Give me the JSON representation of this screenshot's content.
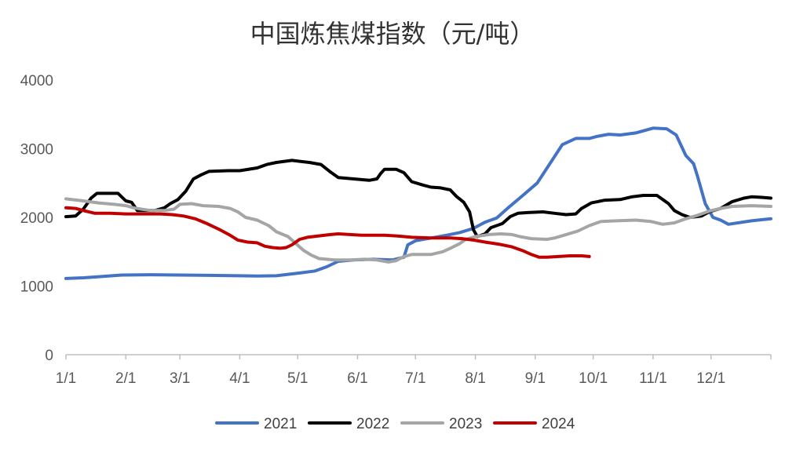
{
  "chart_data": {
    "type": "line",
    "title": "中国炼焦煤指数（元/吨）",
    "xlabel": "",
    "ylabel": "",
    "ylim": [
      0,
      4000
    ],
    "xlim": [
      1,
      366
    ],
    "grid": false,
    "legend_position": "bottom",
    "yticks": [
      "0",
      "1000",
      "2000",
      "3000",
      "4000"
    ],
    "ytick_values": [
      0,
      1000,
      2000,
      3000,
      4000
    ],
    "xticks": [
      {
        "label": "1/1",
        "day": 1
      },
      {
        "label": "2/1",
        "day": 32
      },
      {
        "label": "3/1",
        "day": 60
      },
      {
        "label": "4/1",
        "day": 91
      },
      {
        "label": "5/1",
        "day": 121
      },
      {
        "label": "6/1",
        "day": 152
      },
      {
        "label": "7/1",
        "day": 182
      },
      {
        "label": "8/1",
        "day": 213
      },
      {
        "label": "9/1",
        "day": 244
      },
      {
        "label": "10/1",
        "day": 274
      },
      {
        "label": "11/1",
        "day": 305
      },
      {
        "label": "12/1",
        "day": 335
      }
    ],
    "series": [
      {
        "name": "2021",
        "color": "#4472c4",
        "points": [
          [
            1,
            1110
          ],
          [
            10,
            1120
          ],
          [
            20,
            1140
          ],
          [
            30,
            1160
          ],
          [
            45,
            1165
          ],
          [
            60,
            1160
          ],
          [
            75,
            1155
          ],
          [
            90,
            1150
          ],
          [
            100,
            1145
          ],
          [
            110,
            1150
          ],
          [
            116,
            1170
          ],
          [
            122,
            1190
          ],
          [
            130,
            1220
          ],
          [
            136,
            1280
          ],
          [
            142,
            1360
          ],
          [
            150,
            1380
          ],
          [
            160,
            1390
          ],
          [
            170,
            1380
          ],
          [
            176,
            1420
          ],
          [
            178,
            1600
          ],
          [
            182,
            1660
          ],
          [
            190,
            1700
          ],
          [
            198,
            1740
          ],
          [
            205,
            1780
          ],
          [
            212,
            1840
          ],
          [
            218,
            1930
          ],
          [
            224,
            1990
          ],
          [
            230,
            2140
          ],
          [
            238,
            2330
          ],
          [
            245,
            2500
          ],
          [
            252,
            2800
          ],
          [
            258,
            3060
          ],
          [
            265,
            3150
          ],
          [
            272,
            3150
          ],
          [
            276,
            3180
          ],
          [
            282,
            3210
          ],
          [
            288,
            3200
          ],
          [
            296,
            3230
          ],
          [
            305,
            3300
          ],
          [
            312,
            3290
          ],
          [
            317,
            3200
          ],
          [
            322,
            2900
          ],
          [
            326,
            2780
          ],
          [
            328,
            2600
          ],
          [
            332,
            2200
          ],
          [
            336,
            2000
          ],
          [
            340,
            1960
          ],
          [
            344,
            1900
          ],
          [
            356,
            1950
          ],
          [
            366,
            1980
          ]
        ]
      },
      {
        "name": "2022",
        "color": "#000000",
        "points": [
          [
            1,
            2010
          ],
          [
            6,
            2020
          ],
          [
            10,
            2120
          ],
          [
            14,
            2280
          ],
          [
            17,
            2350
          ],
          [
            28,
            2350
          ],
          [
            32,
            2240
          ],
          [
            35,
            2220
          ],
          [
            38,
            2100
          ],
          [
            47,
            2100
          ],
          [
            52,
            2140
          ],
          [
            55,
            2200
          ],
          [
            59,
            2260
          ],
          [
            63,
            2380
          ],
          [
            67,
            2560
          ],
          [
            71,
            2620
          ],
          [
            75,
            2670
          ],
          [
            85,
            2680
          ],
          [
            91,
            2680
          ],
          [
            100,
            2720
          ],
          [
            105,
            2770
          ],
          [
            110,
            2800
          ],
          [
            118,
            2830
          ],
          [
            127,
            2800
          ],
          [
            133,
            2770
          ],
          [
            138,
            2660
          ],
          [
            142,
            2580
          ],
          [
            150,
            2560
          ],
          [
            158,
            2540
          ],
          [
            162,
            2560
          ],
          [
            164,
            2640
          ],
          [
            166,
            2700
          ],
          [
            172,
            2700
          ],
          [
            176,
            2650
          ],
          [
            180,
            2520
          ],
          [
            186,
            2470
          ],
          [
            190,
            2440
          ],
          [
            195,
            2430
          ],
          [
            200,
            2400
          ],
          [
            203,
            2310
          ],
          [
            207,
            2220
          ],
          [
            210,
            2080
          ],
          [
            212,
            1820
          ],
          [
            214,
            1720
          ],
          [
            218,
            1760
          ],
          [
            221,
            1850
          ],
          [
            227,
            1910
          ],
          [
            231,
            2010
          ],
          [
            235,
            2060
          ],
          [
            240,
            2070
          ],
          [
            248,
            2080
          ],
          [
            254,
            2060
          ],
          [
            260,
            2040
          ],
          [
            265,
            2050
          ],
          [
            268,
            2130
          ],
          [
            273,
            2210
          ],
          [
            280,
            2250
          ],
          [
            288,
            2260
          ],
          [
            294,
            2300
          ],
          [
            300,
            2320
          ],
          [
            307,
            2320
          ],
          [
            313,
            2200
          ],
          [
            316,
            2100
          ],
          [
            320,
            2040
          ],
          [
            324,
            2000
          ],
          [
            330,
            2020
          ],
          [
            334,
            2080
          ],
          [
            340,
            2130
          ],
          [
            346,
            2230
          ],
          [
            352,
            2280
          ],
          [
            356,
            2300
          ],
          [
            362,
            2290
          ],
          [
            366,
            2280
          ]
        ]
      },
      {
        "name": "2023",
        "color": "#a5a5a5",
        "points": [
          [
            1,
            2270
          ],
          [
            10,
            2240
          ],
          [
            18,
            2210
          ],
          [
            26,
            2190
          ],
          [
            32,
            2170
          ],
          [
            36,
            2140
          ],
          [
            40,
            2120
          ],
          [
            45,
            2100
          ],
          [
            52,
            2100
          ],
          [
            57,
            2120
          ],
          [
            60,
            2190
          ],
          [
            66,
            2200
          ],
          [
            72,
            2170
          ],
          [
            80,
            2160
          ],
          [
            86,
            2130
          ],
          [
            90,
            2080
          ],
          [
            94,
            2000
          ],
          [
            100,
            1960
          ],
          [
            106,
            1880
          ],
          [
            110,
            1790
          ],
          [
            116,
            1720
          ],
          [
            120,
            1620
          ],
          [
            124,
            1520
          ],
          [
            128,
            1450
          ],
          [
            132,
            1400
          ],
          [
            140,
            1380
          ],
          [
            148,
            1380
          ],
          [
            156,
            1390
          ],
          [
            162,
            1380
          ],
          [
            168,
            1350
          ],
          [
            172,
            1370
          ],
          [
            176,
            1430
          ],
          [
            180,
            1460
          ],
          [
            190,
            1460
          ],
          [
            196,
            1500
          ],
          [
            200,
            1550
          ],
          [
            205,
            1620
          ],
          [
            208,
            1680
          ],
          [
            213,
            1720
          ],
          [
            220,
            1750
          ],
          [
            226,
            1760
          ],
          [
            232,
            1750
          ],
          [
            236,
            1720
          ],
          [
            242,
            1690
          ],
          [
            250,
            1680
          ],
          [
            254,
            1700
          ],
          [
            260,
            1750
          ],
          [
            266,
            1800
          ],
          [
            272,
            1880
          ],
          [
            278,
            1940
          ],
          [
            286,
            1950
          ],
          [
            296,
            1960
          ],
          [
            304,
            1940
          ],
          [
            310,
            1900
          ],
          [
            316,
            1920
          ],
          [
            322,
            1980
          ],
          [
            328,
            2030
          ],
          [
            334,
            2090
          ],
          [
            340,
            2130
          ],
          [
            346,
            2160
          ],
          [
            356,
            2170
          ],
          [
            366,
            2160
          ]
        ]
      },
      {
        "name": "2024",
        "color": "#c00000",
        "points": [
          [
            1,
            2140
          ],
          [
            6,
            2130
          ],
          [
            10,
            2100
          ],
          [
            16,
            2060
          ],
          [
            24,
            2060
          ],
          [
            32,
            2050
          ],
          [
            40,
            2050
          ],
          [
            50,
            2050
          ],
          [
            56,
            2040
          ],
          [
            62,
            2020
          ],
          [
            68,
            1980
          ],
          [
            74,
            1910
          ],
          [
            80,
            1830
          ],
          [
            86,
            1740
          ],
          [
            90,
            1670
          ],
          [
            95,
            1640
          ],
          [
            100,
            1630
          ],
          [
            104,
            1580
          ],
          [
            108,
            1560
          ],
          [
            112,
            1550
          ],
          [
            115,
            1560
          ],
          [
            118,
            1600
          ],
          [
            120,
            1640
          ],
          [
            122,
            1680
          ],
          [
            126,
            1710
          ],
          [
            132,
            1730
          ],
          [
            138,
            1750
          ],
          [
            142,
            1760
          ],
          [
            148,
            1750
          ],
          [
            154,
            1740
          ],
          [
            160,
            1740
          ],
          [
            166,
            1740
          ],
          [
            172,
            1730
          ],
          [
            180,
            1710
          ],
          [
            190,
            1700
          ],
          [
            200,
            1700
          ],
          [
            206,
            1690
          ],
          [
            212,
            1670
          ],
          [
            218,
            1640
          ],
          [
            225,
            1610
          ],
          [
            232,
            1570
          ],
          [
            238,
            1510
          ],
          [
            242,
            1460
          ],
          [
            246,
            1420
          ],
          [
            250,
            1420
          ],
          [
            256,
            1430
          ],
          [
            262,
            1440
          ],
          [
            268,
            1440
          ],
          [
            272,
            1430
          ]
        ]
      }
    ]
  }
}
